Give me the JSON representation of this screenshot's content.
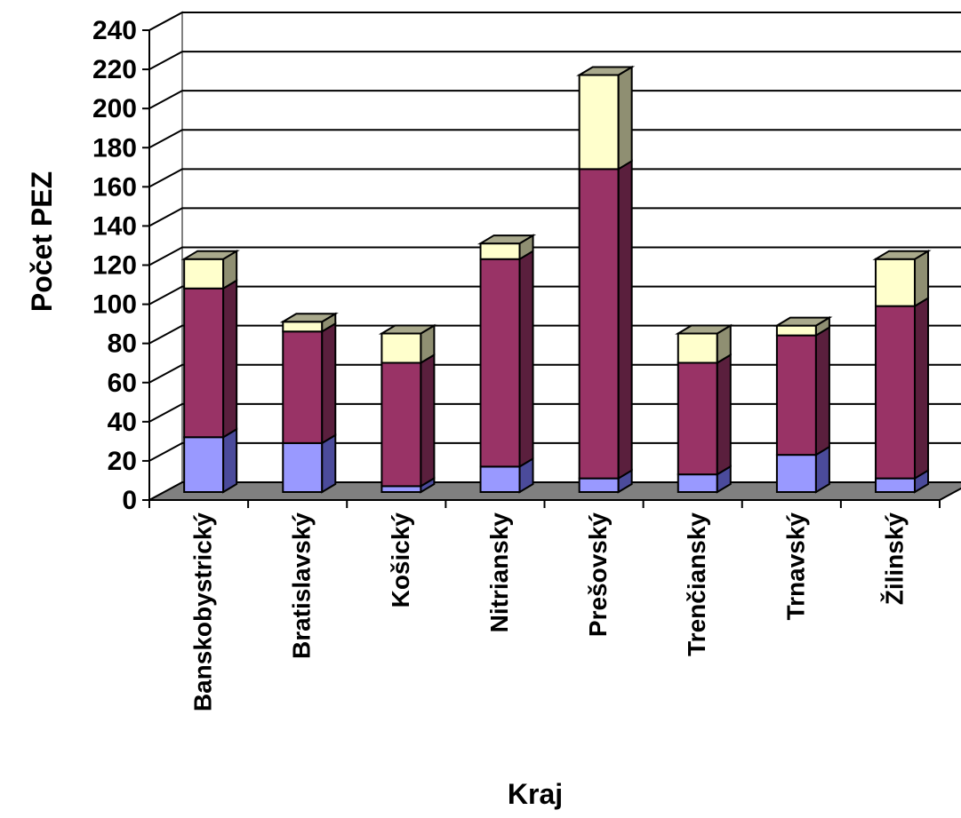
{
  "chart_data": {
    "type": "bar",
    "stacked": true,
    "three_d": true,
    "xlabel": "Kraj",
    "ylabel": "Počet PEZ",
    "ylim": [
      0,
      240
    ],
    "yticks": [
      0,
      20,
      40,
      60,
      80,
      100,
      120,
      140,
      160,
      180,
      200,
      220,
      240
    ],
    "grid": true,
    "legend": "none",
    "categories": [
      "Banskobystrický",
      "Bratislavský",
      "Košický",
      "Nitriansky",
      "Prešovský",
      "Trenčiansky",
      "Trnavský",
      "Žilinský"
    ],
    "series": [
      {
        "values": [
          28,
          25,
          3,
          13,
          7,
          9,
          19,
          7
        ]
      },
      {
        "values": [
          76,
          57,
          63,
          106,
          158,
          57,
          61,
          88
        ]
      },
      {
        "values": [
          15,
          5,
          15,
          8,
          48,
          15,
          5,
          24
        ]
      }
    ],
    "colors": {
      "series_front": [
        "#9999ff",
        "#993366",
        "#ffffcc"
      ],
      "series_side": [
        "#4b4b9b",
        "#5a1f3d",
        "#8f8f72"
      ],
      "series_top": [
        "#6c6cc0",
        "#7a294f",
        "#a9a98c"
      ],
      "floor": "#808080",
      "wall": "#ffffff",
      "gridline": "#000000"
    }
  }
}
